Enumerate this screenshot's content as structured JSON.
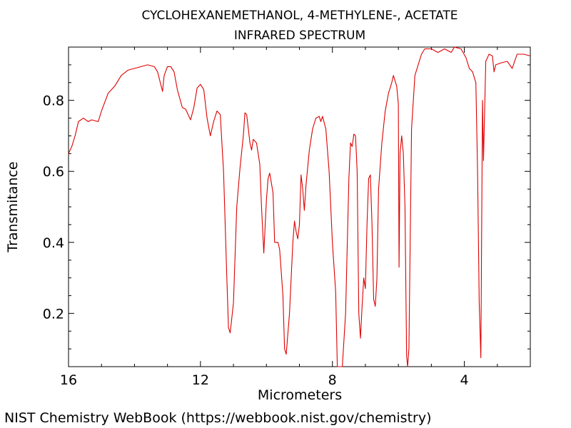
{
  "chart_data": {
    "type": "line",
    "title": "CYCLOHEXANEMETHANOL, 4-METHYLENE-, ACETATE",
    "subtitle": "INFRARED SPECTRUM",
    "xlabel": "Micrometers",
    "ylabel": "Transmitance",
    "xlim": [
      16,
      2
    ],
    "ylim": [
      0.05,
      0.95
    ],
    "x_ticks": [
      16,
      12,
      8,
      4
    ],
    "y_ticks": [
      0.2,
      0.4,
      0.6,
      0.8
    ],
    "x_tick_labels": [
      "16",
      "12",
      "8",
      "4"
    ],
    "y_tick_labels": [
      "0.2",
      "0.4",
      "0.6",
      "0.8"
    ],
    "grid": false,
    "series": [
      {
        "color": "#dd0000",
        "points": [
          [
            16.0,
            0.65
          ],
          [
            15.9,
            0.67
          ],
          [
            15.8,
            0.7
          ],
          [
            15.7,
            0.74
          ],
          [
            15.55,
            0.75
          ],
          [
            15.4,
            0.74
          ],
          [
            15.3,
            0.745
          ],
          [
            15.1,
            0.74
          ],
          [
            15.0,
            0.77
          ],
          [
            14.8,
            0.82
          ],
          [
            14.6,
            0.84
          ],
          [
            14.4,
            0.87
          ],
          [
            14.2,
            0.885
          ],
          [
            14.0,
            0.89
          ],
          [
            13.8,
            0.895
          ],
          [
            13.6,
            0.9
          ],
          [
            13.4,
            0.895
          ],
          [
            13.3,
            0.88
          ],
          [
            13.15,
            0.825
          ],
          [
            13.1,
            0.87
          ],
          [
            13.0,
            0.895
          ],
          [
            12.9,
            0.895
          ],
          [
            12.8,
            0.88
          ],
          [
            12.7,
            0.83
          ],
          [
            12.55,
            0.78
          ],
          [
            12.45,
            0.775
          ],
          [
            12.3,
            0.745
          ],
          [
            12.2,
            0.78
          ],
          [
            12.1,
            0.835
          ],
          [
            12.0,
            0.845
          ],
          [
            11.9,
            0.83
          ],
          [
            11.8,
            0.75
          ],
          [
            11.7,
            0.7
          ],
          [
            11.6,
            0.74
          ],
          [
            11.5,
            0.77
          ],
          [
            11.4,
            0.76
          ],
          [
            11.3,
            0.6
          ],
          [
            11.2,
            0.3
          ],
          [
            11.15,
            0.16
          ],
          [
            11.1,
            0.145
          ],
          [
            11.0,
            0.23
          ],
          [
            10.9,
            0.5
          ],
          [
            10.8,
            0.61
          ],
          [
            10.7,
            0.7
          ],
          [
            10.65,
            0.765
          ],
          [
            10.6,
            0.76
          ],
          [
            10.5,
            0.68
          ],
          [
            10.45,
            0.66
          ],
          [
            10.4,
            0.69
          ],
          [
            10.3,
            0.68
          ],
          [
            10.2,
            0.62
          ],
          [
            10.15,
            0.5
          ],
          [
            10.08,
            0.37
          ],
          [
            10.0,
            0.52
          ],
          [
            9.95,
            0.58
          ],
          [
            9.9,
            0.595
          ],
          [
            9.8,
            0.54
          ],
          [
            9.75,
            0.4
          ],
          [
            9.65,
            0.4
          ],
          [
            9.6,
            0.38
          ],
          [
            9.5,
            0.25
          ],
          [
            9.45,
            0.1
          ],
          [
            9.4,
            0.085
          ],
          [
            9.3,
            0.2
          ],
          [
            9.2,
            0.4
          ],
          [
            9.15,
            0.46
          ],
          [
            9.1,
            0.43
          ],
          [
            9.05,
            0.41
          ],
          [
            9.0,
            0.45
          ],
          [
            8.95,
            0.59
          ],
          [
            8.9,
            0.55
          ],
          [
            8.85,
            0.49
          ],
          [
            8.8,
            0.56
          ],
          [
            8.7,
            0.66
          ],
          [
            8.6,
            0.72
          ],
          [
            8.5,
            0.75
          ],
          [
            8.4,
            0.755
          ],
          [
            8.35,
            0.74
          ],
          [
            8.3,
            0.755
          ],
          [
            8.2,
            0.72
          ],
          [
            8.1,
            0.6
          ],
          [
            8.0,
            0.4
          ],
          [
            7.9,
            0.26
          ],
          [
            7.85,
            0.05
          ],
          [
            7.7,
            0.05
          ],
          [
            7.6,
            0.2
          ],
          [
            7.5,
            0.58
          ],
          [
            7.45,
            0.68
          ],
          [
            7.4,
            0.67
          ],
          [
            7.35,
            0.705
          ],
          [
            7.3,
            0.7
          ],
          [
            7.25,
            0.6
          ],
          [
            7.2,
            0.2
          ],
          [
            7.15,
            0.13
          ],
          [
            7.1,
            0.22
          ],
          [
            7.05,
            0.3
          ],
          [
            7.0,
            0.27
          ],
          [
            6.95,
            0.45
          ],
          [
            6.9,
            0.58
          ],
          [
            6.85,
            0.59
          ],
          [
            6.8,
            0.45
          ],
          [
            6.75,
            0.24
          ],
          [
            6.7,
            0.22
          ],
          [
            6.65,
            0.3
          ],
          [
            6.6,
            0.55
          ],
          [
            6.5,
            0.68
          ],
          [
            6.4,
            0.77
          ],
          [
            6.3,
            0.82
          ],
          [
            6.2,
            0.85
          ],
          [
            6.15,
            0.87
          ],
          [
            6.05,
            0.84
          ],
          [
            6.0,
            0.79
          ],
          [
            5.98,
            0.33
          ],
          [
            5.95,
            0.65
          ],
          [
            5.9,
            0.7
          ],
          [
            5.85,
            0.65
          ],
          [
            5.8,
            0.5
          ],
          [
            5.75,
            0.08
          ],
          [
            5.72,
            0.05
          ],
          [
            5.68,
            0.1
          ],
          [
            5.6,
            0.72
          ],
          [
            5.5,
            0.87
          ],
          [
            5.4,
            0.9
          ],
          [
            5.3,
            0.93
          ],
          [
            5.2,
            0.945
          ],
          [
            5.0,
            0.945
          ],
          [
            4.8,
            0.935
          ],
          [
            4.6,
            0.945
          ],
          [
            4.4,
            0.935
          ],
          [
            4.3,
            0.95
          ],
          [
            4.1,
            0.945
          ],
          [
            3.95,
            0.92
          ],
          [
            3.85,
            0.89
          ],
          [
            3.75,
            0.88
          ],
          [
            3.65,
            0.85
          ],
          [
            3.6,
            0.6
          ],
          [
            3.55,
            0.23
          ],
          [
            3.5,
            0.075
          ],
          [
            3.45,
            0.8
          ],
          [
            3.42,
            0.63
          ],
          [
            3.35,
            0.91
          ],
          [
            3.25,
            0.93
          ],
          [
            3.15,
            0.925
          ],
          [
            3.1,
            0.88
          ],
          [
            3.05,
            0.9
          ],
          [
            2.9,
            0.905
          ],
          [
            2.7,
            0.91
          ],
          [
            2.55,
            0.89
          ],
          [
            2.4,
            0.93
          ],
          [
            2.2,
            0.93
          ],
          [
            2.0,
            0.925
          ]
        ]
      }
    ]
  },
  "footer": "NIST Chemistry WebBook (https://webbook.nist.gov/chemistry)"
}
